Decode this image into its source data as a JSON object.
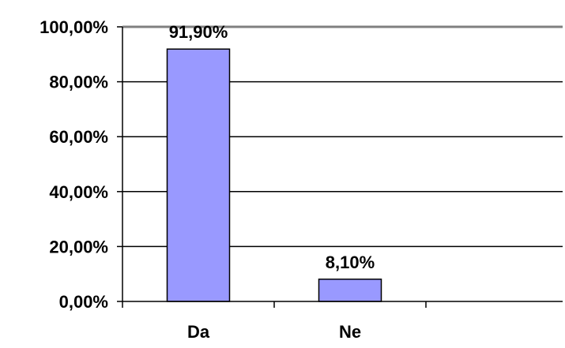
{
  "chart_data": {
    "type": "bar",
    "title": "",
    "xlabel": "",
    "ylabel": "",
    "categories": [
      "Da",
      "Ne"
    ],
    "values": [
      91.9,
      8.1
    ],
    "data_labels": [
      "91,90%",
      "8,10%"
    ],
    "ylim": [
      0,
      100
    ],
    "yticks": [
      0,
      20,
      40,
      60,
      80,
      100
    ],
    "ytick_labels": [
      "0,00%",
      "20,00%",
      "40,00%",
      "60,00%",
      "80,00%",
      "100,00%"
    ],
    "grid": true,
    "legend": "none",
    "bar_color": "#9999ff",
    "bar_edge_color": "#000000",
    "grid_color": "#000000",
    "top_border_color": "#808080"
  }
}
